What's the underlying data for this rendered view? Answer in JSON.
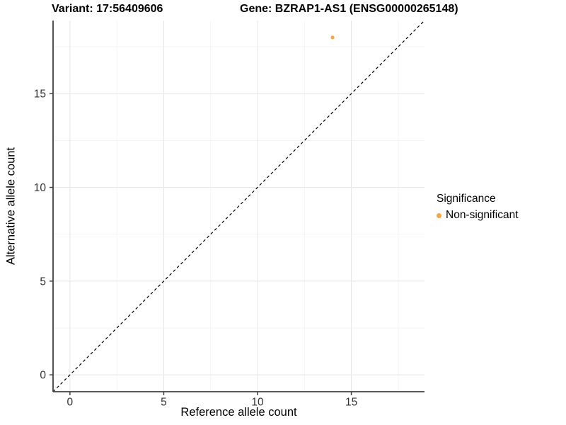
{
  "titles": {
    "variant": "Variant: 17:56409606",
    "gene": "Gene: BZRAP1-AS1 (ENSG00000265148)"
  },
  "axes": {
    "x_label": "Reference allele count",
    "y_label": "Alternative allele count",
    "x_tick_labels": [
      "0",
      "5",
      "10",
      "15"
    ],
    "y_tick_labels": [
      "0",
      "5",
      "10",
      "15"
    ]
  },
  "legend": {
    "title": "Significance",
    "items": [
      {
        "label": "Non-significant",
        "color": "#F9A640"
      }
    ]
  },
  "colors": {
    "point_orange": "#F9A640",
    "axis_line": "#404040",
    "tick_label": "#333333",
    "grid_major": "#e8e8e8",
    "grid_minor": "#f3f3f3",
    "reference_line": "#000000",
    "background": "#ffffff"
  },
  "chart_data": {
    "type": "scatter",
    "title": "Variant: 17:56409606 | Gene: BZRAP1-AS1 (ENSG00000265148)",
    "xlabel": "Reference allele count",
    "ylabel": "Alternative allele count",
    "xlim": [
      -0.9,
      18.9
    ],
    "ylim": [
      -0.9,
      18.9
    ],
    "x_ticks": [
      0,
      5,
      10,
      15
    ],
    "y_ticks": [
      0,
      5,
      10,
      15
    ],
    "x_minor_ticks": [
      2.5,
      7.5,
      12.5,
      17.5
    ],
    "y_minor_ticks": [
      2.5,
      7.5,
      12.5,
      17.5
    ],
    "grid": true,
    "legend_position": "right",
    "series": [
      {
        "name": "Non-significant",
        "color": "#F9A640",
        "points": [
          {
            "x": 14,
            "y": 18
          }
        ]
      }
    ],
    "reference_line": {
      "slope": 1,
      "intercept": 0,
      "style": "dashed",
      "color": "#000000"
    }
  }
}
